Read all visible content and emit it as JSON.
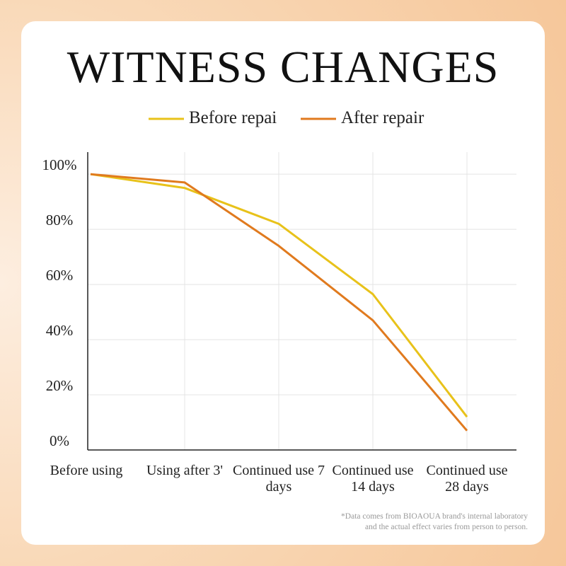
{
  "chart_data": {
    "type": "line",
    "title": "WITNESS CHANGES",
    "categories": [
      "Before using",
      "Using after 3'",
      "Continued use 7 days",
      "Continued use 14 days",
      "Continued use 28 days"
    ],
    "series": [
      {
        "name": "Before repai",
        "color": "#e8c21a",
        "values": [
          100,
          95,
          82,
          56.5,
          12
        ]
      },
      {
        "name": "After repair",
        "color": "#e07a1e",
        "values": [
          100,
          97,
          74,
          47,
          7
        ]
      }
    ],
    "ylim": [
      0,
      108
    ],
    "yticks": [
      {
        "value": 0,
        "label": "0%"
      },
      {
        "value": 20,
        "label": "20%"
      },
      {
        "value": 40,
        "label": "40%"
      },
      {
        "value": 60,
        "label": "60%"
      },
      {
        "value": 80,
        "label": "80%"
      },
      {
        "value": 100,
        "label": "100%"
      }
    ],
    "grid": true,
    "legend": "top",
    "notes": [
      "*Data comes from BIOAOUA brand's internal laboratory",
      "and the actual effect varies from person to person."
    ]
  }
}
